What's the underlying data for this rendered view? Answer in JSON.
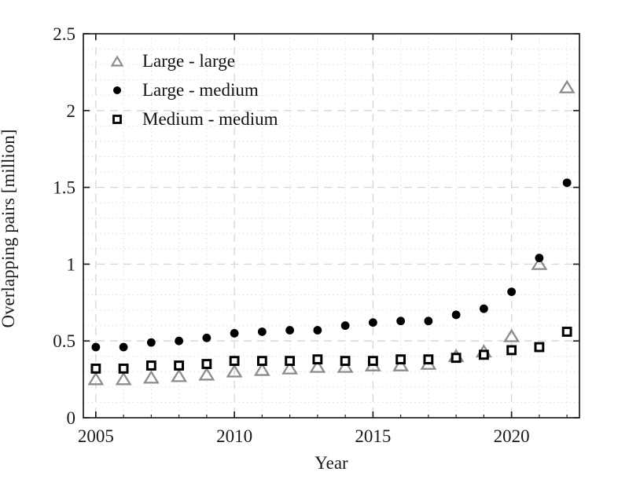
{
  "figure": {
    "background": "#ffffff",
    "axis_color": "#1f1f1f"
  },
  "chart_data": {
    "type": "scatter",
    "title": "",
    "xlabel": "Year",
    "ylabel": "Overlapping pairs [million]",
    "xlim": [
      2004.55,
      2022.45
    ],
    "ylim": [
      0,
      2.5
    ],
    "x_major_ticks": [
      2005,
      2010,
      2015,
      2020
    ],
    "x_tick_labels": [
      "2005",
      "2010",
      "2015",
      "2020"
    ],
    "x_minor_ticks_every_year": true,
    "y_major_ticks": [
      0,
      0.5,
      1,
      1.5,
      2,
      2.5
    ],
    "y_tick_labels": [
      "0",
      "0.5",
      "1",
      "1.5",
      "2",
      "2.5"
    ],
    "y_minor_step": 0.1,
    "grid": {
      "major": true,
      "minor": true,
      "major_style": "dashed",
      "minor_style": "dotted",
      "major_color": "#d6d6d6",
      "minor_color": "#e2e2e2"
    },
    "legend": {
      "position": "top-left-inside",
      "box": false
    },
    "x": [
      2005,
      2006,
      2007,
      2008,
      2009,
      2010,
      2011,
      2012,
      2013,
      2014,
      2015,
      2016,
      2017,
      2018,
      2019,
      2020,
      2021,
      2022
    ],
    "series": [
      {
        "name": "Large - large",
        "marker": "triangle-open",
        "color": "#8c8c8c",
        "values": [
          0.25,
          0.25,
          0.26,
          0.27,
          0.28,
          0.3,
          0.31,
          0.32,
          0.33,
          0.33,
          0.34,
          0.34,
          0.35,
          0.4,
          0.43,
          0.53,
          1.0,
          2.15
        ]
      },
      {
        "name": "Large - medium",
        "marker": "circle-filled",
        "color": "#000000",
        "values": [
          0.46,
          0.46,
          0.49,
          0.5,
          0.52,
          0.55,
          0.56,
          0.57,
          0.57,
          0.6,
          0.62,
          0.63,
          0.63,
          0.67,
          0.71,
          0.82,
          1.04,
          1.53
        ]
      },
      {
        "name": "Medium - medium",
        "marker": "square-open",
        "color": "#000000",
        "values": [
          0.32,
          0.32,
          0.34,
          0.34,
          0.35,
          0.37,
          0.37,
          0.37,
          0.38,
          0.37,
          0.37,
          0.38,
          0.38,
          0.39,
          0.41,
          0.44,
          0.46,
          0.56
        ]
      }
    ]
  }
}
